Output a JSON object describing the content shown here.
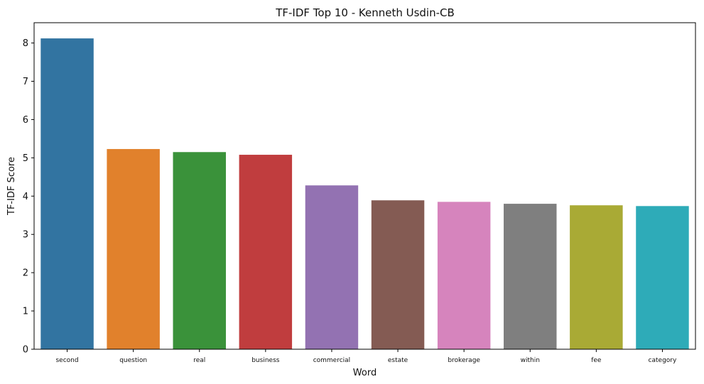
{
  "chart_data": {
    "type": "bar",
    "title": "TF-IDF Top 10 - Kenneth Usdin-CB",
    "xlabel": "Word",
    "ylabel": "TF-IDF Score",
    "categories": [
      "second",
      "question",
      "real",
      "business",
      "commercial",
      "estate",
      "brokerage",
      "within",
      "fee",
      "category"
    ],
    "values": [
      8.12,
      5.23,
      5.15,
      5.08,
      4.28,
      3.89,
      3.85,
      3.8,
      3.76,
      3.74
    ],
    "colors": [
      "#3274a1",
      "#e1812c",
      "#3a923a",
      "#c03d3e",
      "#9372b2",
      "#845b53",
      "#d684bd",
      "#7f7f7f",
      "#a9aa35",
      "#2eabb8"
    ],
    "ylim": [
      0,
      8.53
    ],
    "yticks": [
      0,
      1,
      2,
      3,
      4,
      5,
      6,
      7,
      8
    ],
    "grid": false,
    "legend": "none"
  }
}
